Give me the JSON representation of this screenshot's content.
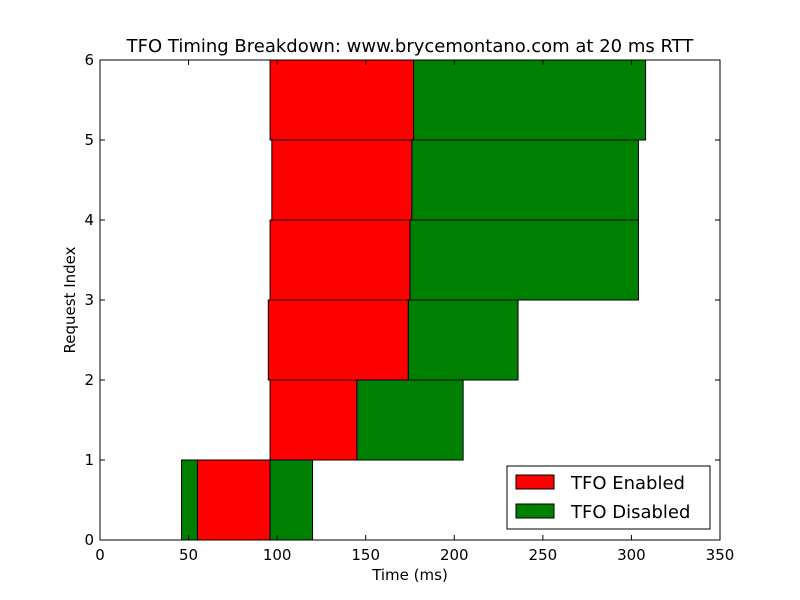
{
  "chart_data": {
    "type": "bar",
    "orientation": "horizontal",
    "stacked": true,
    "title": "TFO Timing Breakdown: www.brycemontano.com at 20 ms RTT",
    "xlabel": "Time (ms)",
    "ylabel": "Request Index",
    "xlim": [
      0,
      350
    ],
    "ylim": [
      0,
      6
    ],
    "xticks": [
      0,
      50,
      100,
      150,
      200,
      250,
      300,
      350
    ],
    "yticks": [
      0,
      1,
      2,
      3,
      4,
      5,
      6
    ],
    "grid": false,
    "legend_position": "lower-right",
    "series": [
      {
        "name": "TFO Enabled",
        "color": "#ff0000",
        "bars": [
          {
            "index": 0,
            "start": 55,
            "end": 96
          },
          {
            "index": 1,
            "start": 96,
            "end": 145
          },
          {
            "index": 2,
            "start": 95,
            "end": 174
          },
          {
            "index": 3,
            "start": 96,
            "end": 175
          },
          {
            "index": 4,
            "start": 97,
            "end": 176
          },
          {
            "index": 5,
            "start": 96,
            "end": 177
          }
        ]
      },
      {
        "name": "TFO Disabled",
        "color": "#008000",
        "bars": [
          {
            "index": 0,
            "start": 46,
            "end": 120
          },
          {
            "index": 1,
            "start": 145,
            "end": 205
          },
          {
            "index": 2,
            "start": 174,
            "end": 236
          },
          {
            "index": 3,
            "start": 175,
            "end": 304
          },
          {
            "index": 4,
            "start": 176,
            "end": 304
          },
          {
            "index": 5,
            "start": 177,
            "end": 308
          }
        ]
      }
    ]
  }
}
